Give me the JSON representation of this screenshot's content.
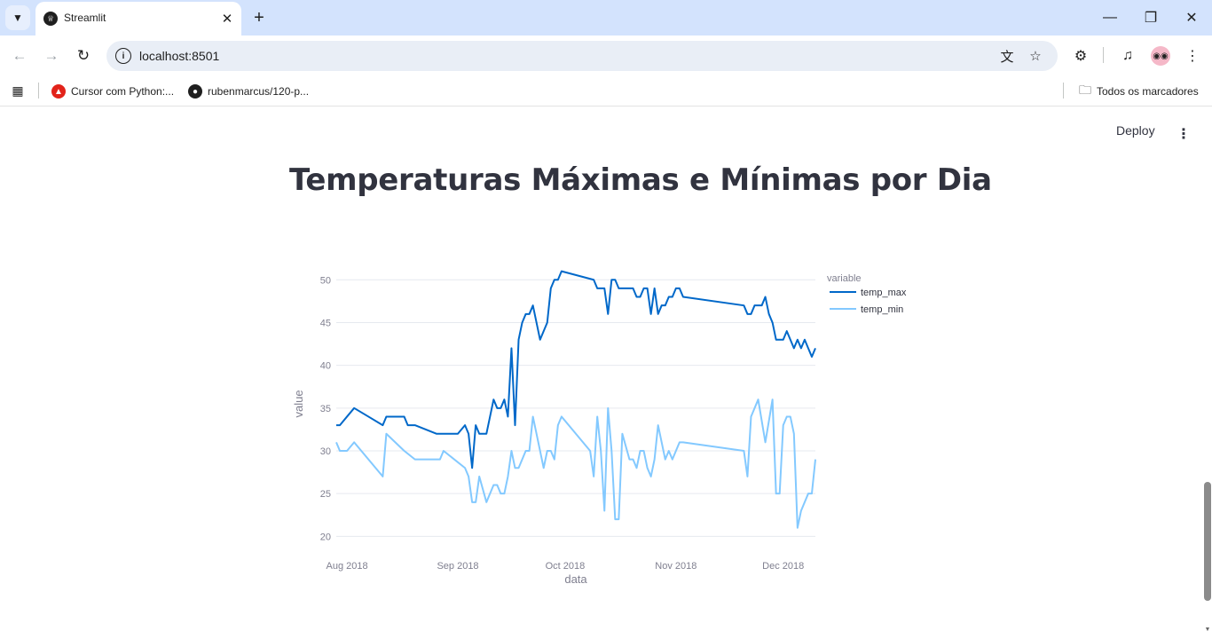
{
  "browser": {
    "tab_title": "Streamlit",
    "url": "localhost:8501",
    "bookmarks": [
      {
        "label": "Cursor com Python:..."
      },
      {
        "label": "rubenmarcus/120-p..."
      }
    ],
    "all_bookmarks_label": "Todos os marcadores"
  },
  "app": {
    "deploy_label": "Deploy",
    "title": "Temperaturas Máximas e Mínimas por Dia"
  },
  "colors": {
    "temp_max": "#0068c9",
    "temp_min": "#83c9ff",
    "grid": "#e6e9ef"
  },
  "chart_data": {
    "type": "line",
    "xlabel": "data",
    "ylabel": "value",
    "legend_title": "variable",
    "legend_placement": "right",
    "grid": true,
    "x_range": [
      "2018-07-29",
      "2018-12-10"
    ],
    "ylim": [
      19,
      52
    ],
    "x_ticks": [
      {
        "date": "2018-08-01",
        "label": "Aug 2018"
      },
      {
        "date": "2018-09-01",
        "label": "Sep 2018"
      },
      {
        "date": "2018-10-01",
        "label": "Oct 2018"
      },
      {
        "date": "2018-11-01",
        "label": "Nov 2018"
      },
      {
        "date": "2018-12-01",
        "label": "Dec 2018"
      }
    ],
    "y_ticks": [
      20,
      25,
      30,
      35,
      40,
      45,
      50
    ],
    "series": [
      {
        "name": "temp_max",
        "points": [
          [
            "2018-07-29",
            33
          ],
          [
            "2018-07-30",
            33
          ],
          [
            "2018-08-01",
            34
          ],
          [
            "2018-08-03",
            35
          ],
          [
            "2018-08-07",
            34
          ],
          [
            "2018-08-11",
            33
          ],
          [
            "2018-08-12",
            34
          ],
          [
            "2018-08-17",
            34
          ],
          [
            "2018-08-18",
            33
          ],
          [
            "2018-08-20",
            33
          ],
          [
            "2018-08-26",
            32
          ],
          [
            "2018-08-29",
            32
          ],
          [
            "2018-08-30",
            32
          ],
          [
            "2018-09-01",
            32
          ],
          [
            "2018-09-03",
            33
          ],
          [
            "2018-09-04",
            32
          ],
          [
            "2018-09-05",
            28
          ],
          [
            "2018-09-06",
            33
          ],
          [
            "2018-09-07",
            32
          ],
          [
            "2018-09-09",
            32
          ],
          [
            "2018-09-11",
            36
          ],
          [
            "2018-09-12",
            35
          ],
          [
            "2018-09-13",
            35
          ],
          [
            "2018-09-14",
            36
          ],
          [
            "2018-09-15",
            34
          ],
          [
            "2018-09-16",
            42
          ],
          [
            "2018-09-17",
            33
          ],
          [
            "2018-09-18",
            43
          ],
          [
            "2018-09-19",
            45
          ],
          [
            "2018-09-20",
            46
          ],
          [
            "2018-09-21",
            46
          ],
          [
            "2018-09-22",
            47
          ],
          [
            "2018-09-24",
            43
          ],
          [
            "2018-09-26",
            45
          ],
          [
            "2018-09-27",
            49
          ],
          [
            "2018-09-28",
            50
          ],
          [
            "2018-09-29",
            50
          ],
          [
            "2018-09-30",
            51
          ],
          [
            "2018-10-09",
            50
          ],
          [
            "2018-10-10",
            49
          ],
          [
            "2018-10-12",
            49
          ],
          [
            "2018-10-13",
            46
          ],
          [
            "2018-10-14",
            50
          ],
          [
            "2018-10-15",
            50
          ],
          [
            "2018-10-16",
            49
          ],
          [
            "2018-10-20",
            49
          ],
          [
            "2018-10-21",
            48
          ],
          [
            "2018-10-22",
            48
          ],
          [
            "2018-10-23",
            49
          ],
          [
            "2018-10-24",
            49
          ],
          [
            "2018-10-25",
            46
          ],
          [
            "2018-10-26",
            49
          ],
          [
            "2018-10-27",
            46
          ],
          [
            "2018-10-28",
            47
          ],
          [
            "2018-10-29",
            47
          ],
          [
            "2018-10-30",
            48
          ],
          [
            "2018-10-31",
            48
          ],
          [
            "2018-11-01",
            49
          ],
          [
            "2018-11-02",
            49
          ],
          [
            "2018-11-03",
            48
          ],
          [
            "2018-11-20",
            47
          ],
          [
            "2018-11-21",
            46
          ],
          [
            "2018-11-22",
            46
          ],
          [
            "2018-11-23",
            47
          ],
          [
            "2018-11-25",
            47
          ],
          [
            "2018-11-26",
            48
          ],
          [
            "2018-11-27",
            46
          ],
          [
            "2018-11-28",
            45
          ],
          [
            "2018-11-29",
            43
          ],
          [
            "2018-12-01",
            43
          ],
          [
            "2018-12-02",
            44
          ],
          [
            "2018-12-04",
            42
          ],
          [
            "2018-12-05",
            43
          ],
          [
            "2018-12-06",
            42
          ],
          [
            "2018-12-07",
            43
          ],
          [
            "2018-12-08",
            42
          ],
          [
            "2018-12-09",
            41
          ],
          [
            "2018-12-10",
            42
          ]
        ]
      },
      {
        "name": "temp_min",
        "points": [
          [
            "2018-07-29",
            31
          ],
          [
            "2018-07-30",
            30
          ],
          [
            "2018-08-01",
            30
          ],
          [
            "2018-08-03",
            31
          ],
          [
            "2018-08-11",
            27
          ],
          [
            "2018-08-12",
            32
          ],
          [
            "2018-08-17",
            30
          ],
          [
            "2018-08-20",
            29
          ],
          [
            "2018-08-27",
            29
          ],
          [
            "2018-08-28",
            30
          ],
          [
            "2018-09-03",
            28
          ],
          [
            "2018-09-04",
            27
          ],
          [
            "2018-09-05",
            24
          ],
          [
            "2018-09-06",
            24
          ],
          [
            "2018-09-07",
            27
          ],
          [
            "2018-09-09",
            24
          ],
          [
            "2018-09-11",
            26
          ],
          [
            "2018-09-12",
            26
          ],
          [
            "2018-09-13",
            25
          ],
          [
            "2018-09-14",
            25
          ],
          [
            "2018-09-15",
            27
          ],
          [
            "2018-09-16",
            30
          ],
          [
            "2018-09-17",
            28
          ],
          [
            "2018-09-18",
            28
          ],
          [
            "2018-09-20",
            30
          ],
          [
            "2018-09-21",
            30
          ],
          [
            "2018-09-22",
            34
          ],
          [
            "2018-09-25",
            28
          ],
          [
            "2018-09-26",
            30
          ],
          [
            "2018-09-27",
            30
          ],
          [
            "2018-09-28",
            29
          ],
          [
            "2018-09-29",
            33
          ],
          [
            "2018-09-30",
            34
          ],
          [
            "2018-10-08",
            30
          ],
          [
            "2018-10-09",
            27
          ],
          [
            "2018-10-10",
            34
          ],
          [
            "2018-10-11",
            30
          ],
          [
            "2018-10-12",
            23
          ],
          [
            "2018-10-13",
            35
          ],
          [
            "2018-10-14",
            30
          ],
          [
            "2018-10-15",
            22
          ],
          [
            "2018-10-16",
            22
          ],
          [
            "2018-10-17",
            32
          ],
          [
            "2018-10-19",
            29
          ],
          [
            "2018-10-20",
            29
          ],
          [
            "2018-10-21",
            28
          ],
          [
            "2018-10-22",
            30
          ],
          [
            "2018-10-23",
            30
          ],
          [
            "2018-10-24",
            28
          ],
          [
            "2018-10-25",
            27
          ],
          [
            "2018-10-26",
            29
          ],
          [
            "2018-10-27",
            33
          ],
          [
            "2018-10-28",
            31
          ],
          [
            "2018-10-29",
            29
          ],
          [
            "2018-10-30",
            30
          ],
          [
            "2018-10-31",
            29
          ],
          [
            "2018-11-02",
            31
          ],
          [
            "2018-11-03",
            31
          ],
          [
            "2018-11-20",
            30
          ],
          [
            "2018-11-21",
            27
          ],
          [
            "2018-11-22",
            34
          ],
          [
            "2018-11-24",
            36
          ],
          [
            "2018-11-26",
            31
          ],
          [
            "2018-11-28",
            36
          ],
          [
            "2018-11-29",
            25
          ],
          [
            "2018-11-30",
            25
          ],
          [
            "2018-12-01",
            33
          ],
          [
            "2018-12-02",
            34
          ],
          [
            "2018-12-03",
            34
          ],
          [
            "2018-12-04",
            32
          ],
          [
            "2018-12-05",
            21
          ],
          [
            "2018-12-06",
            23
          ],
          [
            "2018-12-08",
            25
          ],
          [
            "2018-12-09",
            25
          ],
          [
            "2018-12-10",
            29
          ]
        ]
      }
    ]
  }
}
